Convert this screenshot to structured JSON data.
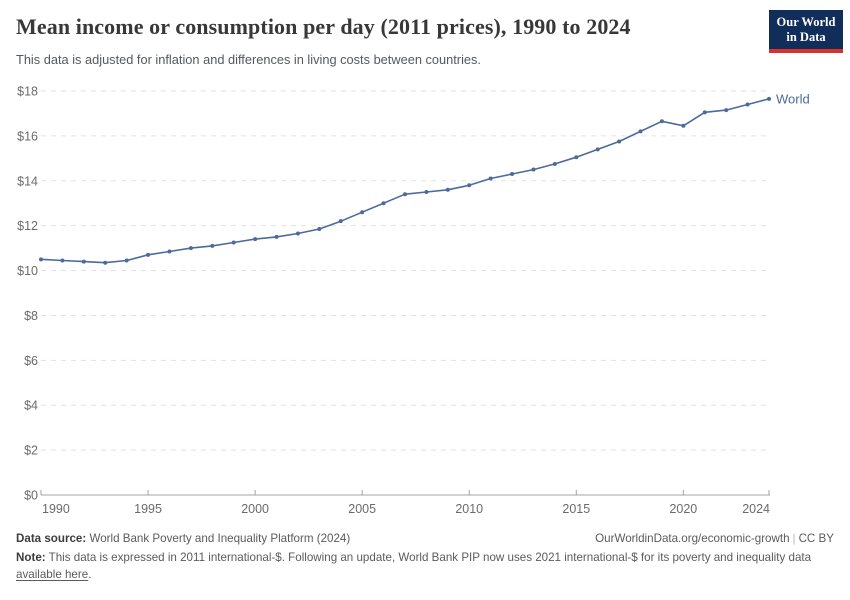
{
  "header": {
    "title": "Mean income or consumption per day (2011 prices), 1990 to 2024",
    "subtitle": "This data is adjusted for inflation and differences in living costs between countries.",
    "logo": {
      "line1": "Our World",
      "line2": "in Data"
    }
  },
  "chart_data": {
    "type": "line",
    "title": "Mean income or consumption per day (2011 prices), 1990 to 2024",
    "x": [
      1990,
      1991,
      1992,
      1993,
      1994,
      1995,
      1996,
      1997,
      1998,
      1999,
      2000,
      2001,
      2002,
      2003,
      2004,
      2005,
      2006,
      2007,
      2008,
      2009,
      2010,
      2011,
      2012,
      2013,
      2014,
      2015,
      2016,
      2017,
      2018,
      2019,
      2020,
      2021,
      2022,
      2023,
      2024
    ],
    "series": [
      {
        "name": "World",
        "color": "#4c6a9c",
        "values": [
          10.5,
          10.45,
          10.4,
          10.35,
          10.45,
          10.7,
          10.85,
          11.0,
          11.1,
          11.25,
          11.4,
          11.5,
          11.65,
          11.85,
          12.2,
          12.6,
          13.0,
          13.4,
          13.5,
          13.6,
          13.8,
          14.1,
          14.3,
          14.5,
          14.75,
          15.05,
          15.4,
          15.75,
          16.2,
          16.65,
          16.45,
          17.05,
          17.15,
          17.4,
          17.65
        ]
      }
    ],
    "xlabel": "",
    "ylabel": "",
    "xlim": [
      1990,
      2024
    ],
    "ylim": [
      0,
      18
    ],
    "x_tick_labels": [
      "1990",
      "1995",
      "2000",
      "2005",
      "2010",
      "2015",
      "2020",
      "2024"
    ],
    "x_tick_years": [
      1990,
      1995,
      2000,
      2005,
      2010,
      2015,
      2020,
      2024
    ],
    "y_tick_labels": [
      "$0",
      "$2",
      "$4",
      "$6",
      "$8",
      "$10",
      "$12",
      "$14",
      "$16",
      "$18"
    ],
    "y_tick_values": [
      0,
      2,
      4,
      6,
      8,
      10,
      12,
      14,
      16,
      18
    ],
    "grid": "horizontal-dashed",
    "legend_position": "end-of-line",
    "end_label": "World"
  },
  "footer": {
    "source_label": "Data source:",
    "source_value": "World Bank Poverty and Inequality Platform (2024)",
    "right_url": "OurWorldinData.org/economic-growth",
    "right_separator": "|",
    "right_license": "CC BY",
    "note_label": "Note:",
    "note_text": "This data is expressed in 2011 international-$. Following an update, World Bank PIP now uses 2021 international-$ for its poverty and inequality data",
    "note_link": "available here",
    "note_suffix": "."
  },
  "colors": {
    "line": "#4c6a9c",
    "grid": "#e2e2e2",
    "axis": "#a3a3a3",
    "tick_text": "#6b6b6b",
    "logo_bg": "#112d59",
    "logo_accent": "#d7332d"
  }
}
